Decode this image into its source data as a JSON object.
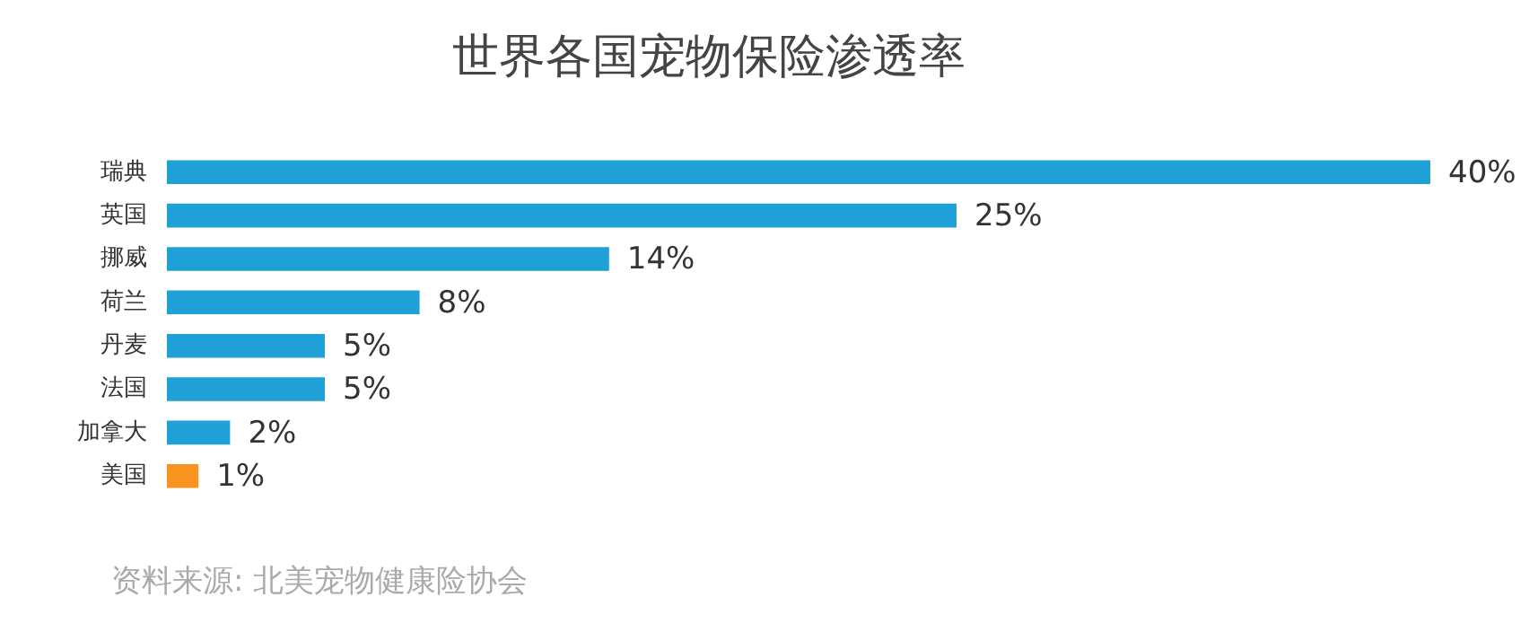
{
  "chart_data": {
    "type": "bar",
    "orientation": "horizontal",
    "title": "世界各国宠物保险渗透率",
    "categories": [
      "瑞典",
      "英国",
      "挪威",
      "荷兰",
      "丹麦",
      "法国",
      "加拿大",
      "美国"
    ],
    "values": [
      40,
      25,
      14,
      8,
      5,
      5,
      2,
      1
    ],
    "colors": [
      "#1fa0d6",
      "#1fa0d6",
      "#1fa0d6",
      "#1fa0d6",
      "#1fa0d6",
      "#1fa0d6",
      "#1fa0d6",
      "#f7931e"
    ],
    "value_labels": [
      "40%",
      "25%",
      "14%",
      "8%",
      "5%",
      "5%",
      "2%",
      "1%"
    ],
    "xlim": [
      0,
      40
    ],
    "tick_labels": "y",
    "annotations": [
      "资料来源: 北美宠物健康险协会"
    ]
  }
}
